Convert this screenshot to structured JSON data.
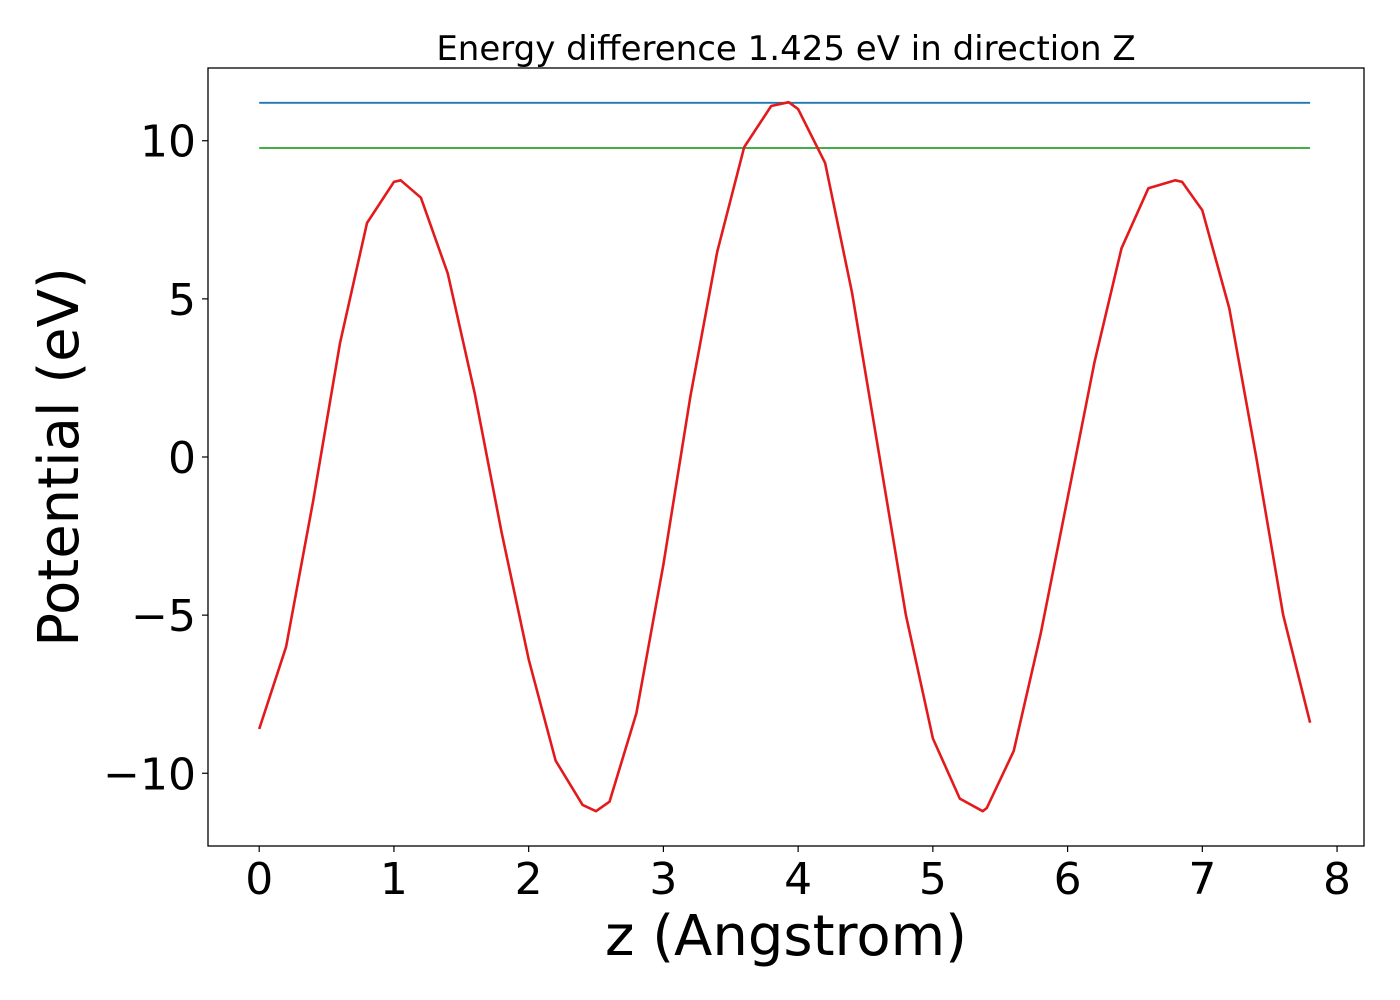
{
  "chart_data": {
    "type": "line",
    "title": "Energy difference 1.425 eV in direction Z",
    "xlabel": "z (Angstrom)",
    "ylabel": "Potential (eV)",
    "xlim": [
      -0.38,
      8.2
    ],
    "ylim": [
      -12.3,
      12.3
    ],
    "xticks": [
      0,
      1,
      2,
      3,
      4,
      5,
      6,
      7,
      8
    ],
    "xtick_labels": [
      "0",
      "1",
      "2",
      "3",
      "4",
      "5",
      "6",
      "7",
      "8"
    ],
    "yticks": [
      -10,
      -5,
      0,
      5,
      10
    ],
    "ytick_labels": [
      "−10",
      "−5",
      "0",
      "5",
      "10"
    ],
    "grid": false,
    "series": [
      {
        "color": "#1f77b4",
        "x": [
          0,
          7.8
        ],
        "y": [
          11.2,
          11.2
        ]
      },
      {
        "color": "#2ca02c",
        "x": [
          0,
          7.8
        ],
        "y": [
          9.77,
          9.77
        ]
      },
      {
        "color": "#e31a1c",
        "x": [
          0,
          0.2,
          0.4,
          0.6,
          0.8,
          1.0,
          1.05,
          1.2,
          1.4,
          1.6,
          1.8,
          2.0,
          2.2,
          2.4,
          2.5,
          2.6,
          2.8,
          3.0,
          3.2,
          3.4,
          3.6,
          3.8,
          3.93,
          4.0,
          4.2,
          4.4,
          4.6,
          4.8,
          5.0,
          5.2,
          5.37,
          5.4,
          5.6,
          5.8,
          6.0,
          6.2,
          6.4,
          6.6,
          6.8,
          6.85,
          7.0,
          7.2,
          7.4,
          7.6,
          7.8
        ],
        "y": [
          -8.6,
          -6.0,
          -1.4,
          3.6,
          7.4,
          8.7,
          8.75,
          8.2,
          5.8,
          2.0,
          -2.4,
          -6.4,
          -9.6,
          -11.0,
          -11.2,
          -10.9,
          -8.1,
          -3.4,
          1.9,
          6.5,
          9.8,
          11.1,
          11.22,
          11.0,
          9.3,
          5.2,
          0.1,
          -5.0,
          -8.9,
          -10.8,
          -11.2,
          -11.1,
          -9.3,
          -5.6,
          -1.3,
          3.0,
          6.6,
          8.5,
          8.75,
          8.7,
          7.8,
          4.7,
          0.0,
          -5.0,
          -8.4
        ]
      }
    ]
  }
}
